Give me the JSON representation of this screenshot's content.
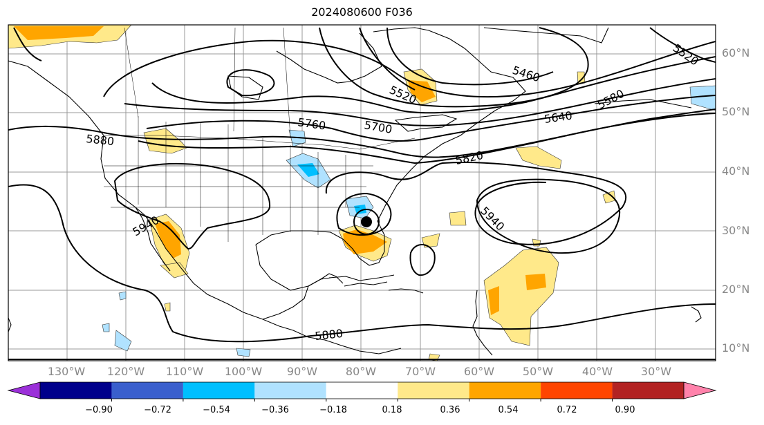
{
  "title": "2024080600 F036",
  "lat_labels": [
    "60°N",
    "50°N",
    "40°N",
    "30°N",
    "20°N",
    "10°N"
  ],
  "lon_labels": [
    "130°W",
    "120°W",
    "110°W",
    "100°W",
    "90°W",
    "80°W",
    "70°W",
    "60°W",
    "50°W",
    "40°W",
    "30°W"
  ],
  "contour_labels": [
    "5520",
    "5460",
    "5520",
    "5580",
    "5640",
    "5700",
    "5760",
    "5820",
    "5880",
    "5940",
    "5940",
    "5880"
  ],
  "colorbar": {
    "ticks": [
      "−0.90",
      "−0.72",
      "−0.54",
      "−0.36",
      "−0.18",
      "0.18",
      "0.36",
      "0.54",
      "0.72",
      "0.90"
    ],
    "colors": [
      "#9b30d9",
      "#00008b",
      "#3a5fcd",
      "#00bfff",
      "#b0e2ff",
      "#ffffff",
      "#ffe98a",
      "#ffa500",
      "#ff4500",
      "#b22222",
      "#ff82ab"
    ]
  }
}
